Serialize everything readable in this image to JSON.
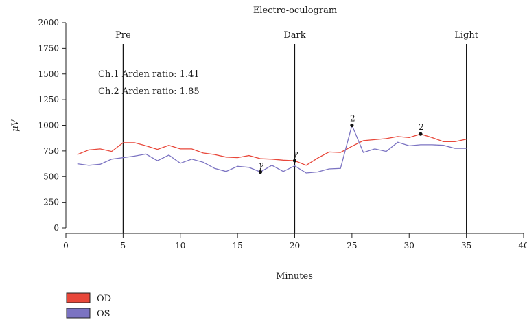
{
  "chart_data": {
    "type": "line",
    "title": "Electro-oculogram",
    "xlabel": "Minutes",
    "ylabel": "μV",
    "xlim": [
      0,
      40
    ],
    "ylim": [
      0,
      2000
    ],
    "xticks": [
      0,
      5,
      10,
      15,
      20,
      25,
      30,
      35,
      40
    ],
    "yticks": [
      0,
      250,
      500,
      750,
      1000,
      1250,
      1500,
      1750,
      2000
    ],
    "grid": false,
    "legend_position": "bottom-left",
    "events": [
      {
        "label": "Pre",
        "x": 5
      },
      {
        "label": "Dark",
        "x": 20
      },
      {
        "label": "Light",
        "x": 35
      }
    ],
    "annotations": [
      "Ch.1 Arden ratio: 1.41",
      "Ch.2 Arden ratio: 1.85"
    ],
    "series": [
      {
        "name": "OD",
        "color": "#e8473a",
        "x": [
          1,
          2,
          3,
          4,
          5,
          6,
          7,
          8,
          9,
          10,
          11,
          12,
          13,
          14,
          15,
          16,
          17,
          18,
          19,
          20,
          21,
          22,
          23,
          24,
          25,
          26,
          27,
          28,
          29,
          30,
          31,
          32,
          33,
          34,
          35
        ],
        "values": [
          715,
          760,
          770,
          745,
          830,
          830,
          800,
          765,
          805,
          770,
          770,
          730,
          715,
          690,
          685,
          705,
          675,
          670,
          660,
          655,
          610,
          680,
          740,
          735,
          795,
          850,
          860,
          870,
          890,
          880,
          915,
          880,
          840,
          840,
          865
        ]
      },
      {
        "name": "OS",
        "color": "#7b73c2",
        "x": [
          1,
          2,
          3,
          4,
          5,
          6,
          7,
          8,
          9,
          10,
          11,
          12,
          13,
          14,
          15,
          16,
          17,
          18,
          19,
          20,
          21,
          22,
          23,
          24,
          25,
          26,
          27,
          28,
          29,
          30,
          31,
          32,
          33,
          34,
          35
        ],
        "values": [
          625,
          610,
          620,
          670,
          685,
          700,
          720,
          655,
          710,
          630,
          670,
          640,
          580,
          550,
          600,
          590,
          545,
          610,
          550,
          605,
          535,
          545,
          575,
          580,
          1000,
          735,
          770,
          745,
          835,
          800,
          810,
          810,
          805,
          775,
          775
        ]
      }
    ],
    "point_markers": [
      {
        "label": "γ",
        "series": "OS",
        "x": 17,
        "y": 545
      },
      {
        "label": "γ",
        "series": "OD",
        "x": 20,
        "y": 655
      },
      {
        "label": "2",
        "series": "OS",
        "x": 25,
        "y": 1000
      },
      {
        "label": "2",
        "series": "OD",
        "x": 31,
        "y": 915
      }
    ]
  }
}
